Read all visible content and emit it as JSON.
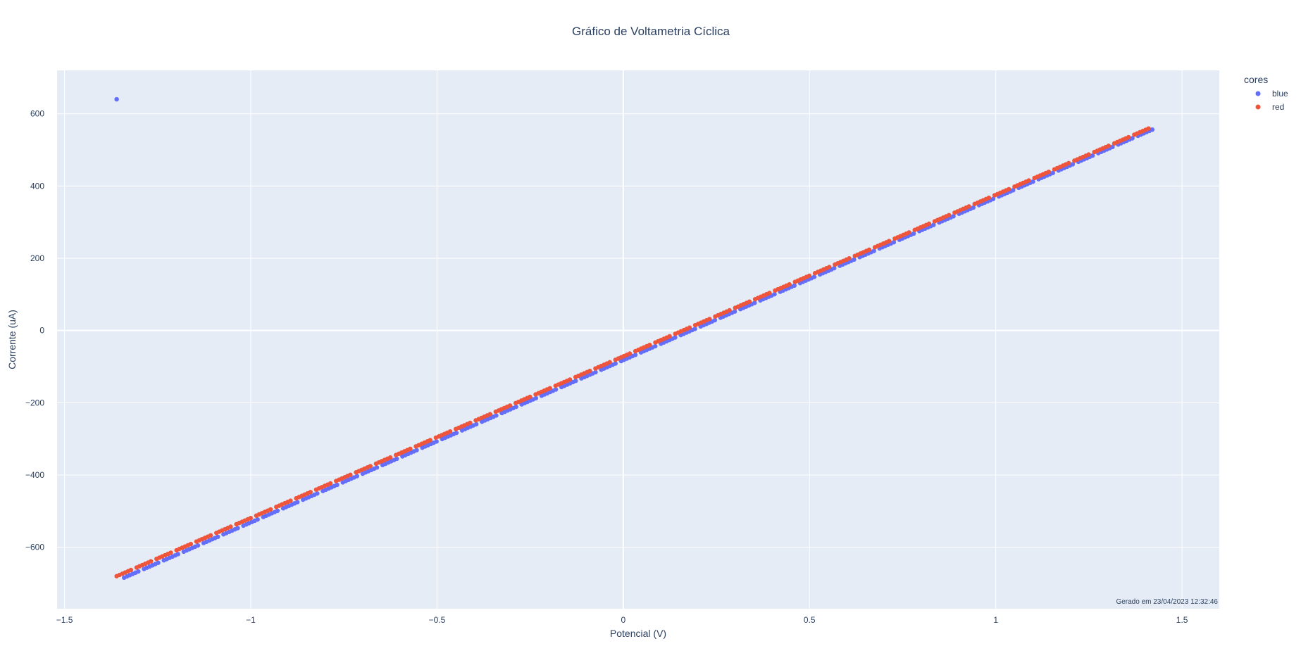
{
  "chart_data": {
    "type": "scatter",
    "title": "Gráfico de Voltametria Cíclica",
    "xlabel": "Potencial (V)",
    "ylabel": "Corrente (uA)",
    "xlim": [
      -1.52,
      1.6
    ],
    "ylim": [
      -770,
      720
    ],
    "x_ticks": [
      -1.5,
      -1,
      -0.5,
      0,
      0.5,
      1,
      1.5
    ],
    "x_tick_labels": [
      "−1.5",
      "−1",
      "−0.5",
      "0",
      "0.5",
      "1",
      "1.5"
    ],
    "y_ticks": [
      -600,
      -400,
      -200,
      0,
      200,
      400,
      600
    ],
    "y_tick_labels": [
      "−600",
      "−400",
      "−200",
      "0",
      "200",
      "400",
      "600"
    ],
    "grid": true,
    "legend": {
      "title": "cores",
      "placement": "top-right",
      "entries": [
        "blue",
        "red"
      ]
    },
    "annotation": "Gerado em 23/04/2023 12:32:46",
    "series": [
      {
        "name": "blue",
        "color": "#636efa",
        "x_start": -1.34,
        "x_end": 1.42,
        "y_start": -684,
        "y_end": 556,
        "outliers": [
          {
            "x": -1.36,
            "y": 640
          }
        ]
      },
      {
        "name": "red",
        "color": "#ef553b",
        "x_start": -1.36,
        "x_end": 1.41,
        "y_start": -680,
        "y_end": 559,
        "outliers": []
      }
    ]
  }
}
